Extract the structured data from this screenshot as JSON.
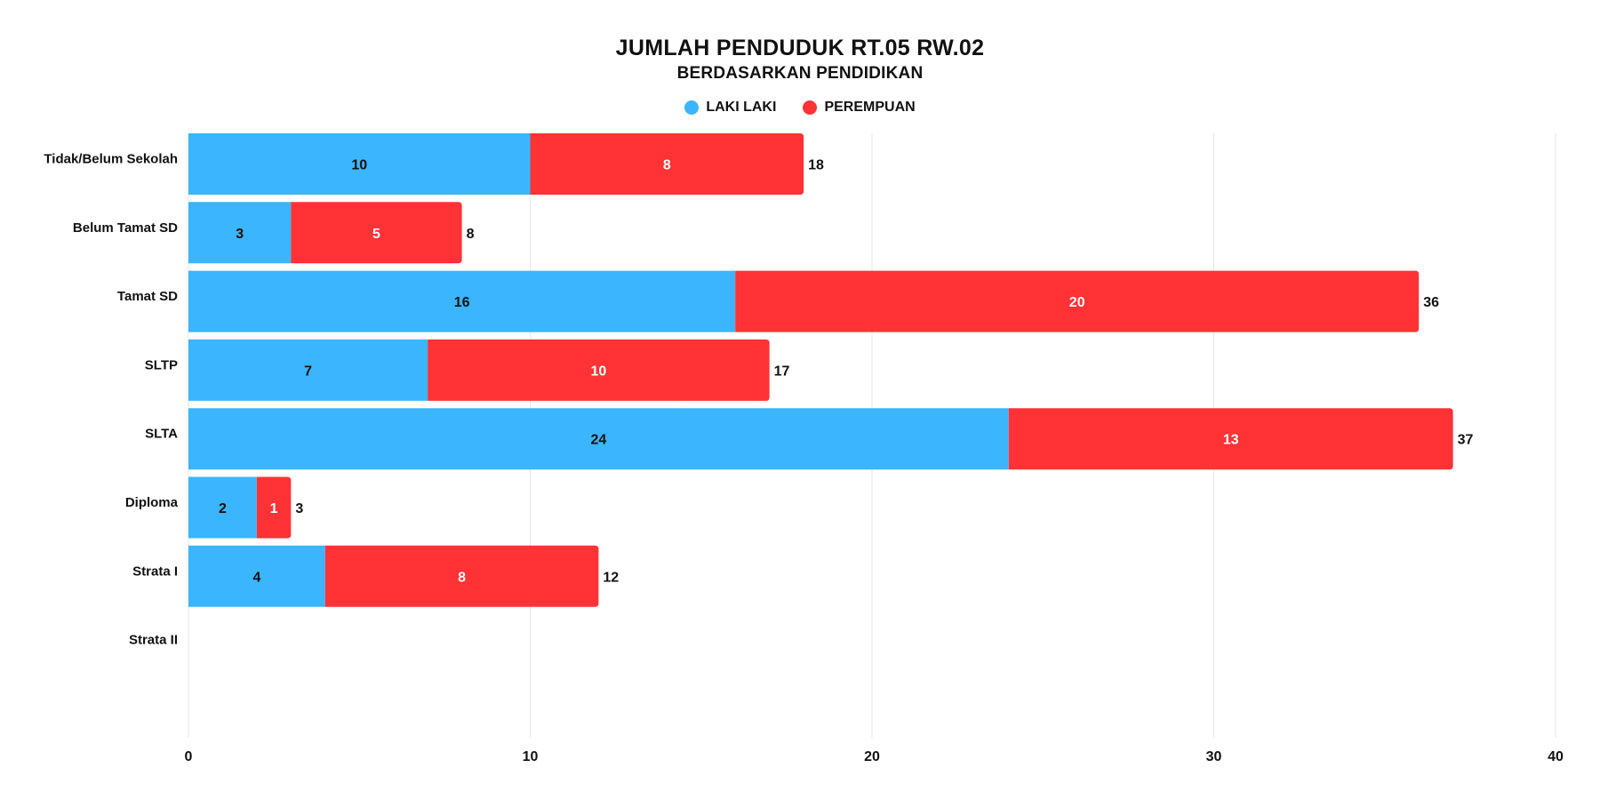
{
  "chart_data": {
    "type": "bar",
    "orientation": "horizontal",
    "stacked": true,
    "title": "JUMLAH PENDUDUK RT.05 RW.02",
    "subtitle": "BERDASARKAN PENDIDIKAN",
    "categories": [
      "Tidak/Belum Sekolah",
      "Belum Tamat SD",
      "Tamat SD",
      "SLTP",
      "SLTA",
      "Diploma",
      "Strata I",
      "Strata II"
    ],
    "series": [
      {
        "name": "LAKI LAKI",
        "color": "#3BB5FE",
        "label_color": "#111111",
        "values": [
          10,
          3,
          16,
          7,
          24,
          2,
          4,
          0
        ]
      },
      {
        "name": "PEREMPUAN",
        "color": "#FF3236",
        "label_color": "#ffffff",
        "values": [
          8,
          5,
          20,
          10,
          13,
          1,
          8,
          0
        ]
      }
    ],
    "totals": [
      18,
      8,
      36,
      17,
      37,
      3,
      12,
      0
    ],
    "xlim": [
      0,
      40
    ],
    "xticks": [
      0,
      10,
      20,
      30,
      40
    ],
    "grid": true,
    "legend_position": "top-center",
    "xlabel": "",
    "ylabel": ""
  }
}
